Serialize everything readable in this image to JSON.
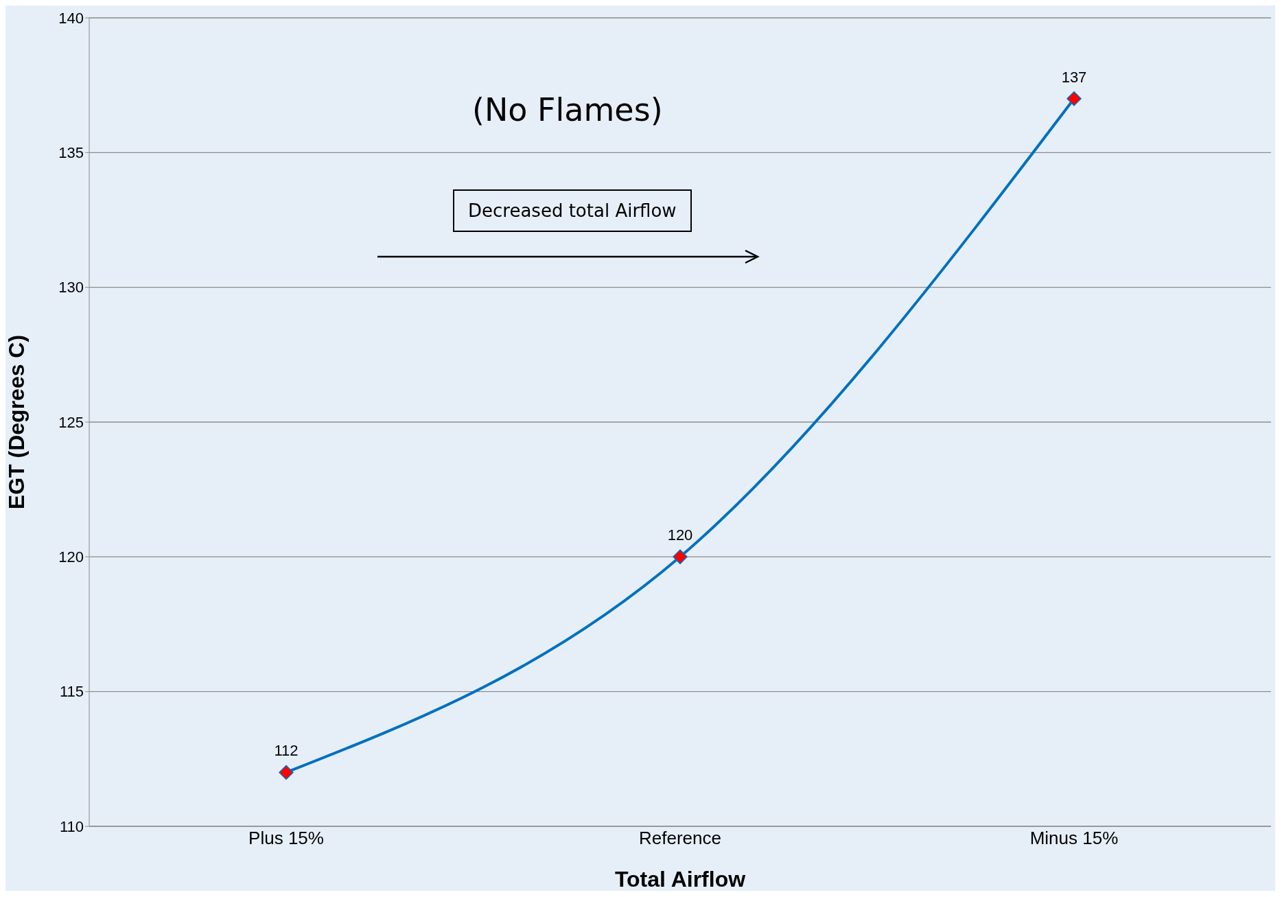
{
  "chart_data": {
    "type": "line",
    "xlabel": "Total Airflow",
    "ylabel": "EGT (Degrees  C)",
    "categories": [
      "Plus 15%",
      "Reference",
      "Minus 15%"
    ],
    "series": [
      {
        "color": "#0070c0",
        "values": [
          112,
          120,
          137
        ]
      }
    ],
    "ylim": [
      110,
      140
    ],
    "yticks": [
      110,
      115,
      120,
      125,
      130,
      135,
      140
    ],
    "grid": "y",
    "marker": "diamond",
    "data_labels": true,
    "annotations": [
      "(No Flames)",
      "Decreased total Airflow"
    ]
  }
}
